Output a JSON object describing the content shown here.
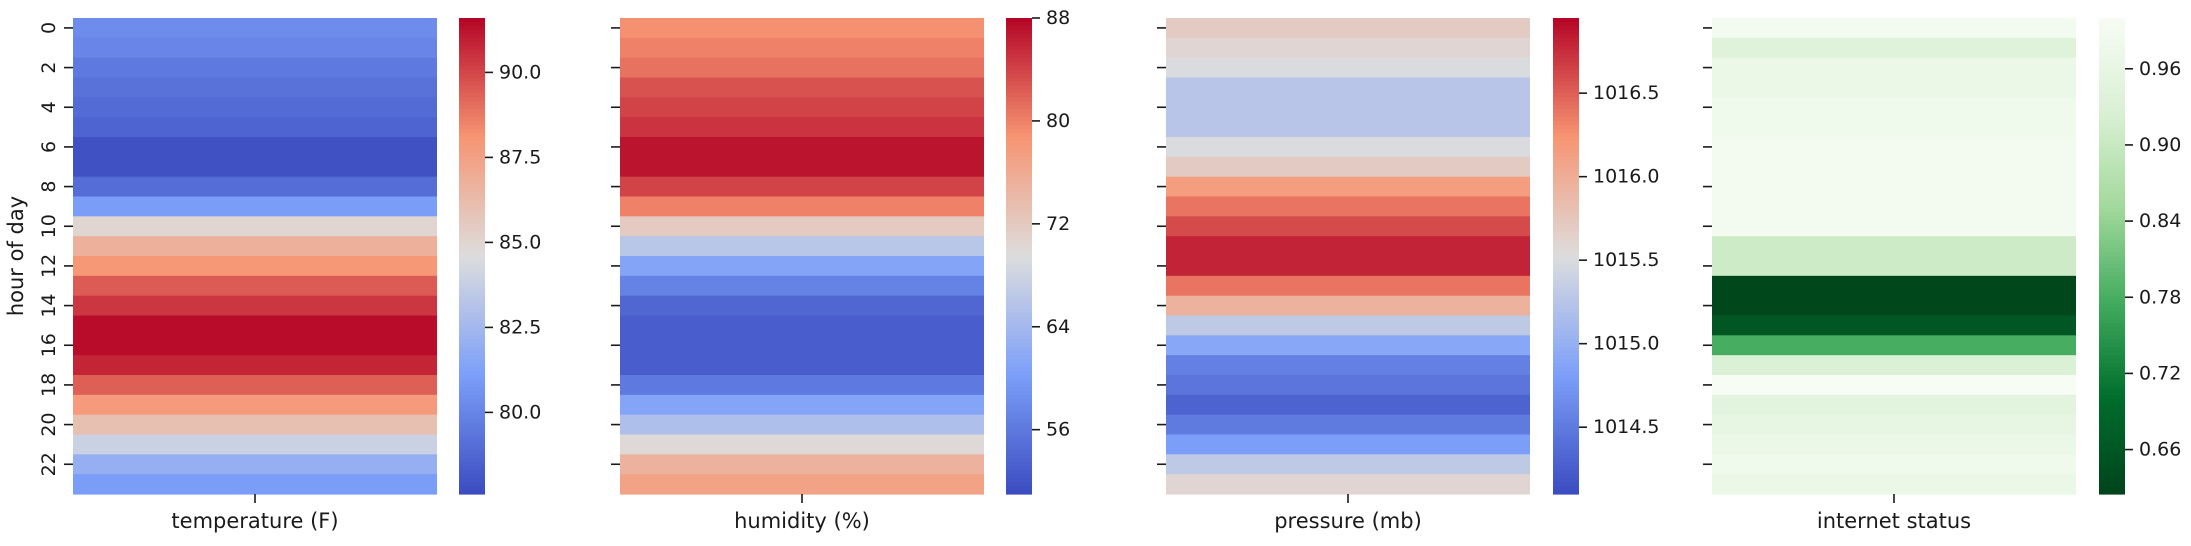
{
  "chart_data": [
    {
      "type": "heatmap",
      "xlabel": "temperature (F)",
      "ylabel": "hour of day",
      "y_ticks": [
        "0",
        "2",
        "4",
        "6",
        "8",
        "10",
        "12",
        "14",
        "16",
        "18",
        "20",
        "22"
      ],
      "rows": [
        "0",
        "1",
        "2",
        "3",
        "4",
        "5",
        "6",
        "7",
        "8",
        "9",
        "10",
        "11",
        "12",
        "13",
        "14",
        "15",
        "16",
        "17",
        "18",
        "19",
        "20",
        "21",
        "22",
        "23"
      ],
      "colormap": "coolwarm",
      "values": [
        80.3,
        80.0,
        79.5,
        79.2,
        78.9,
        78.6,
        77.8,
        77.8,
        79.0,
        81.0,
        85.0,
        86.8,
        88.0,
        89.5,
        90.4,
        91.4,
        91.4,
        90.8,
        89.4,
        87.8,
        86.0,
        83.9,
        82.0,
        81.0
      ],
      "colorbar": {
        "min": 77.6,
        "max": 91.6,
        "ticks": [
          "80.0",
          "82.5",
          "85.0",
          "87.5",
          "90.0"
        ]
      }
    },
    {
      "type": "heatmap",
      "xlabel": "humidity (%)",
      "ylabel": "",
      "rows": [
        "0",
        "1",
        "2",
        "3",
        "4",
        "5",
        "6",
        "7",
        "8",
        "9",
        "10",
        "11",
        "12",
        "13",
        "14",
        "15",
        "16",
        "17",
        "18",
        "19",
        "20",
        "21",
        "22",
        "23"
      ],
      "colormap": "coolwarm",
      "values": [
        79,
        80,
        81,
        83,
        84,
        85,
        87,
        87,
        84,
        80,
        72,
        66,
        61,
        57,
        54,
        53,
        53,
        53,
        56,
        61,
        65,
        70,
        75,
        77
      ],
      "colorbar": {
        "min": 51,
        "max": 88,
        "ticks": [
          "56",
          "64",
          "72",
          "80",
          "88"
        ]
      }
    },
    {
      "type": "heatmap",
      "xlabel": "pressure (mb)",
      "ylabel": "",
      "rows": [
        "0",
        "1",
        "2",
        "3",
        "4",
        "5",
        "6",
        "7",
        "8",
        "9",
        "10",
        "11",
        "12",
        "13",
        "14",
        "15",
        "16",
        "17",
        "18",
        "19",
        "20",
        "21",
        "22",
        "23"
      ],
      "colormap": "coolwarm",
      "values": [
        1015.7,
        1015.6,
        1015.5,
        1015.25,
        1015.25,
        1015.25,
        1015.5,
        1015.7,
        1016.15,
        1016.4,
        1016.6,
        1016.8,
        1016.8,
        1016.4,
        1015.95,
        1015.3,
        1014.9,
        1014.55,
        1014.45,
        1014.3,
        1014.5,
        1014.8,
        1015.3,
        1015.6
      ],
      "colorbar": {
        "min": 1014.1,
        "max": 1016.95,
        "ticks": [
          "1014.5",
          "1015.0",
          "1015.5",
          "1016.0",
          "1016.5"
        ]
      }
    },
    {
      "type": "heatmap",
      "xlabel": "internet status",
      "ylabel": "",
      "rows": [
        "0",
        "1",
        "2",
        "3",
        "4",
        "5",
        "6",
        "7",
        "8",
        "9",
        "10",
        "11",
        "12",
        "13",
        "14",
        "15",
        "16",
        "17",
        "18",
        "19",
        "20",
        "21",
        "22",
        "23"
      ],
      "colormap": "Greens_r",
      "values": [
        0.99,
        0.94,
        0.97,
        0.97,
        0.98,
        0.98,
        0.99,
        0.99,
        0.99,
        0.99,
        0.99,
        0.91,
        0.91,
        0.63,
        0.63,
        0.66,
        0.78,
        0.93,
        1.0,
        0.95,
        0.96,
        0.97,
        0.98,
        0.97
      ],
      "colorbar": {
        "min": 0.625,
        "max": 1.0,
        "ticks": [
          "0.66",
          "0.72",
          "0.78",
          "0.84",
          "0.90",
          "0.96"
        ]
      }
    }
  ]
}
